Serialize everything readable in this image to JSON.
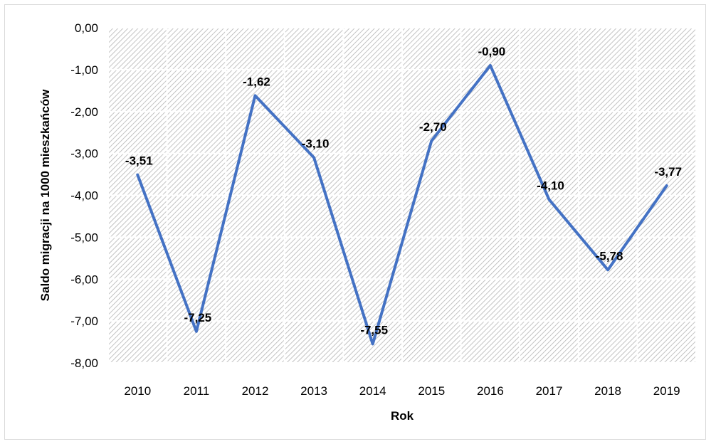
{
  "chart_data": {
    "type": "line",
    "title": "",
    "xlabel": "Rok",
    "ylabel": "Saldo migracji na 1000 mieszkańców",
    "categories": [
      "2010",
      "2011",
      "2012",
      "2013",
      "2014",
      "2015",
      "2016",
      "2017",
      "2018",
      "2019"
    ],
    "series": [
      {
        "values": [
          -3.51,
          -7.25,
          -1.62,
          -3.1,
          -7.55,
          -2.7,
          -0.9,
          -4.1,
          -5.78,
          -3.77
        ],
        "data_labels": [
          "-3,51",
          "-7,25",
          "-1,62",
          "-3,10",
          "-7,55",
          "-2,70",
          "-0,90",
          "-4,10",
          "-5,78",
          "-3,77"
        ],
        "color": "#4472c4"
      }
    ],
    "ylim": [
      -8,
      0
    ],
    "yticks": [
      0,
      -1,
      -2,
      -3,
      -4,
      -5,
      -6,
      -7,
      -8
    ],
    "ytick_labels": [
      "0,00",
      "-1,00",
      "-2,00",
      "-3,00",
      "-4,00",
      "-5,00",
      "-6,00",
      "-7,00",
      "-8,00"
    ],
    "grid": true,
    "legend": "none",
    "plot_background": "hatched"
  }
}
